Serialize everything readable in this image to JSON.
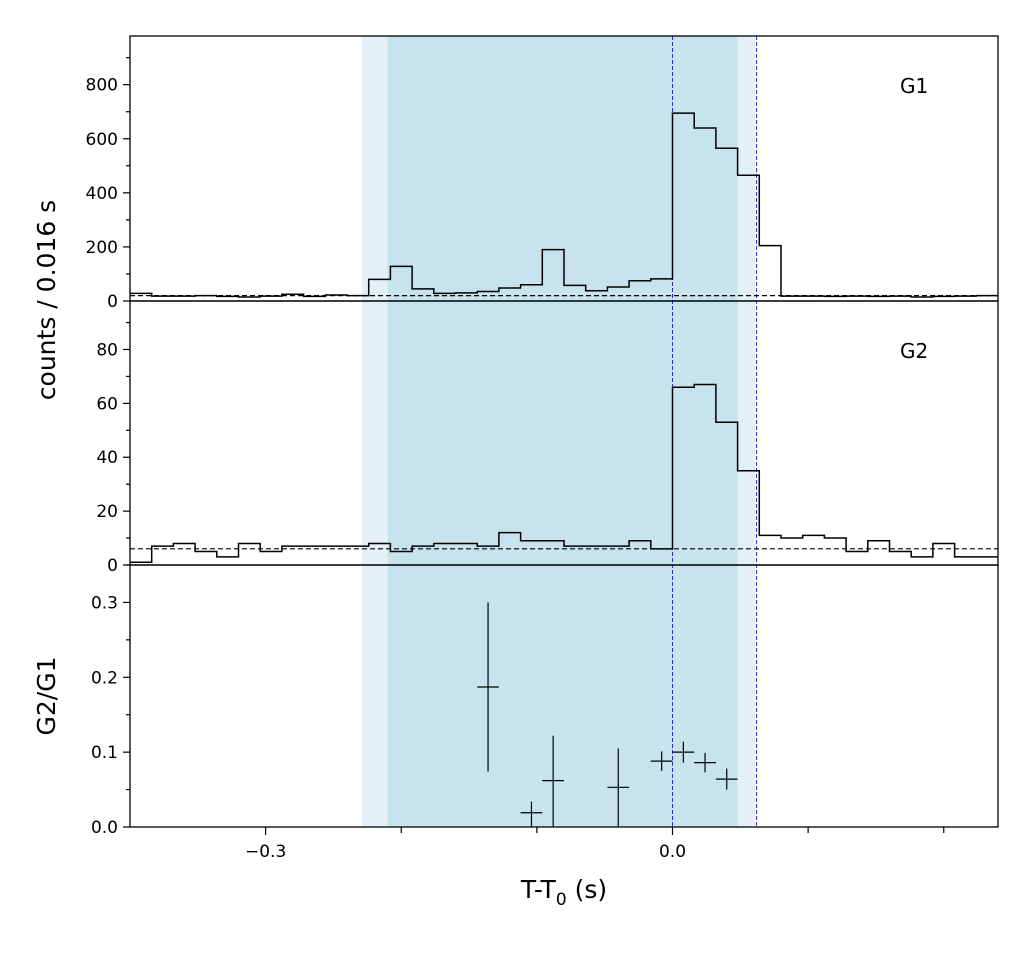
{
  "chart_data": [
    {
      "panel": "top",
      "type": "step",
      "label": "G1",
      "ylim": [
        0,
        980
      ],
      "yticks_major": [
        0,
        200,
        400,
        600,
        800
      ],
      "background_level": 20,
      "x_edges": [
        -0.4,
        -0.384,
        -0.368,
        -0.352,
        -0.336,
        -0.32,
        -0.304,
        -0.288,
        -0.272,
        -0.256,
        -0.24,
        -0.224,
        -0.208,
        -0.192,
        -0.176,
        -0.16,
        -0.144,
        -0.128,
        -0.112,
        -0.096,
        -0.08,
        -0.064,
        -0.048,
        -0.032,
        -0.016,
        0.0,
        0.016,
        0.032,
        0.048,
        0.064,
        0.08,
        0.096,
        0.112,
        0.128,
        0.144,
        0.16,
        0.176,
        0.192,
        0.208,
        0.224,
        0.24
      ],
      "values": [
        28,
        18,
        18,
        20,
        17,
        15,
        18,
        25,
        17,
        22,
        20,
        80,
        128,
        45,
        28,
        30,
        35,
        48,
        60,
        190,
        58,
        38,
        52,
        75,
        82,
        695,
        640,
        565,
        465,
        205,
        18,
        18,
        17,
        18,
        17,
        18,
        15,
        17,
        18,
        20
      ]
    },
    {
      "panel": "middle",
      "type": "step",
      "label": "G2",
      "ylim": [
        0,
        98
      ],
      "yticks_major": [
        0,
        20,
        40,
        60,
        80
      ],
      "background_level": 6,
      "x_edges": [
        -0.4,
        -0.384,
        -0.368,
        -0.352,
        -0.336,
        -0.32,
        -0.304,
        -0.288,
        -0.272,
        -0.256,
        -0.24,
        -0.224,
        -0.208,
        -0.192,
        -0.176,
        -0.16,
        -0.144,
        -0.128,
        -0.112,
        -0.096,
        -0.08,
        -0.064,
        -0.048,
        -0.032,
        -0.016,
        0.0,
        0.016,
        0.032,
        0.048,
        0.064,
        0.08,
        0.096,
        0.112,
        0.128,
        0.144,
        0.16,
        0.176,
        0.192,
        0.208,
        0.224,
        0.24
      ],
      "values": [
        1,
        7,
        8,
        5,
        3,
        8,
        5,
        7,
        7,
        7,
        7,
        8,
        5,
        7,
        8,
        8,
        7,
        12,
        9,
        9,
        7,
        7,
        7,
        9,
        6,
        66,
        67,
        53,
        35,
        11,
        10,
        11,
        10,
        5,
        9,
        5,
        3,
        8,
        3,
        3
      ]
    },
    {
      "panel": "bottom",
      "type": "errorbar",
      "ylabel": "G2/G1",
      "ylim": [
        0,
        0.35
      ],
      "yticks_major": [
        0.0,
        0.1,
        0.2,
        0.3
      ],
      "points": [
        {
          "x": -0.136,
          "y": 0.187,
          "yerr_lo": 0.113,
          "yerr_hi": 0.113
        },
        {
          "x": -0.104,
          "y": 0.019,
          "yerr_lo": 0.019,
          "yerr_hi": 0.015
        },
        {
          "x": -0.088,
          "y": 0.062,
          "yerr_lo": 0.062,
          "yerr_hi": 0.06
        },
        {
          "x": -0.04,
          "y": 0.053,
          "yerr_lo": 0.053,
          "yerr_hi": 0.052
        },
        {
          "x": -0.008,
          "y": 0.088,
          "yerr_lo": 0.013,
          "yerr_hi": 0.013
        },
        {
          "x": 0.008,
          "y": 0.1,
          "yerr_lo": 0.014,
          "yerr_hi": 0.014
        },
        {
          "x": 0.024,
          "y": 0.086,
          "yerr_lo": 0.013,
          "yerr_hi": 0.013
        },
        {
          "x": 0.04,
          "y": 0.064,
          "yerr_lo": 0.014,
          "yerr_hi": 0.014
        }
      ]
    }
  ],
  "shared_x": {
    "xlabel_main": "T-T",
    "xlabel_sub": "0",
    "xlabel_unit": " (s)",
    "xlim": [
      -0.4,
      0.24
    ],
    "xticks_labeled": [
      -0.3,
      0.0
    ],
    "xtick_labels": [
      "−0.3",
      "0.0"
    ],
    "xticks_minor": [
      -0.2,
      -0.1,
      0.1,
      0.2
    ]
  },
  "ylabel_top": "counts /  0.016 s",
  "shaded_regions": [
    {
      "x0": -0.229,
      "x1": 0.061,
      "color": "#e3f1f6"
    },
    {
      "x0": -0.21,
      "x1": 0.048,
      "color": "#c7e4ee"
    }
  ],
  "vlines": [
    {
      "x": 0.0,
      "color": "#2b2bd6"
    },
    {
      "x": 0.062,
      "color": "#2b2bd6"
    }
  ],
  "colors": {
    "step": "#000000",
    "background": "#000000"
  }
}
